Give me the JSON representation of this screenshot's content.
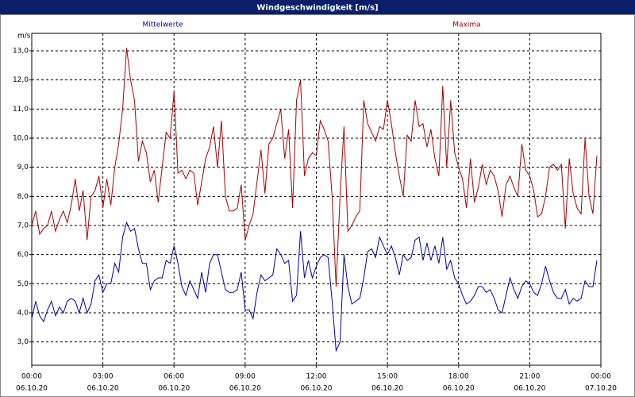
{
  "chart_data": {
    "type": "line",
    "title": "Windgeschwindigkeit [m/s]",
    "y_label": "m/s",
    "x": [
      0,
      10,
      20,
      30,
      40,
      50,
      60,
      70,
      80,
      90,
      100,
      110,
      120,
      130,
      140,
      150,
      160,
      170,
      180,
      190,
      200,
      210,
      220,
      230,
      240,
      250,
      260,
      270,
      280,
      290,
      300,
      310,
      320,
      330,
      340,
      350,
      360,
      370,
      380,
      390,
      400,
      410,
      420,
      430,
      440,
      450,
      460,
      470,
      480,
      490,
      500,
      510,
      520,
      530,
      540,
      550,
      560,
      570,
      580,
      590,
      600,
      610,
      620,
      630,
      640,
      650,
      660,
      670,
      680,
      690,
      700,
      710,
      720,
      730,
      740,
      750,
      760,
      770,
      780,
      790,
      800,
      810,
      820,
      830,
      840,
      850,
      860,
      870,
      880,
      890,
      900,
      910,
      920,
      930,
      940,
      950,
      960,
      970,
      980,
      990,
      1000,
      1010,
      1020,
      1030,
      1040,
      1050,
      1060,
      1070,
      1080,
      1090,
      1100,
      1110,
      1120,
      1130,
      1140,
      1150,
      1160,
      1170,
      1180,
      1190,
      1200,
      1210,
      1220,
      1230,
      1240,
      1250,
      1260,
      1270,
      1280,
      1290,
      1300,
      1310,
      1320,
      1330,
      1340,
      1350,
      1360,
      1370,
      1380,
      1390,
      1400,
      1410,
      1420,
      1430
    ],
    "series": [
      {
        "name": "Mittelwerte",
        "color": "#0000a8",
        "values": [
          3.8,
          4.4,
          3.9,
          3.7,
          4.1,
          4.4,
          3.9,
          4.2,
          4.0,
          4.4,
          4.5,
          4.4,
          4.0,
          4.5,
          4.0,
          4.3,
          5.1,
          5.3,
          4.7,
          5.0,
          5.0,
          5.7,
          5.4,
          6.6,
          7.1,
          6.8,
          6.9,
          6.2,
          5.7,
          5.7,
          4.8,
          5.1,
          5.2,
          5.2,
          5.8,
          5.7,
          6.3,
          5.7,
          4.9,
          4.6,
          5.1,
          4.8,
          4.5,
          5.4,
          4.7,
          5.7,
          6.0,
          6.0,
          5.4,
          4.8,
          4.7,
          4.7,
          4.8,
          5.4,
          4.1,
          4.1,
          3.8,
          4.7,
          5.3,
          5.1,
          5.2,
          5.3,
          6.2,
          6.0,
          5.7,
          5.8,
          4.4,
          4.6,
          6.8,
          5.2,
          5.8,
          5.2,
          5.6,
          5.9,
          6.0,
          5.9,
          4.4,
          2.7,
          3.0,
          6.0,
          4.9,
          4.3,
          4.4,
          4.5,
          5.2,
          6.1,
          6.2,
          5.9,
          6.6,
          6.3,
          6.0,
          6.3,
          5.9,
          5.3,
          6.0,
          5.8,
          5.9,
          6.5,
          6.6,
          5.8,
          6.4,
          5.8,
          6.3,
          5.7,
          6.6,
          5.5,
          5.8,
          5.2,
          5.0,
          4.6,
          4.3,
          4.4,
          4.6,
          4.9,
          4.9,
          4.7,
          4.8,
          4.5,
          4.1,
          4.0,
          4.6,
          5.2,
          4.8,
          4.5,
          4.9,
          5.1,
          5.0,
          4.7,
          4.6,
          5.0,
          5.6,
          5.1,
          4.7,
          4.5,
          4.5,
          4.8,
          4.3,
          4.5,
          4.4,
          4.5,
          5.1,
          4.9,
          4.9,
          5.8
        ]
      },
      {
        "name": "Maxima",
        "color": "#a80000",
        "values": [
          7.0,
          7.5,
          6.7,
          6.9,
          7.0,
          7.5,
          6.8,
          7.2,
          7.5,
          7.1,
          7.7,
          8.6,
          7.5,
          8.2,
          6.5,
          8.0,
          8.2,
          8.7,
          7.6,
          8.6,
          7.7,
          9.0,
          9.8,
          11.0,
          13.1,
          12.0,
          11.3,
          9.2,
          9.9,
          9.5,
          8.5,
          8.9,
          7.8,
          9.0,
          10.2,
          10.0,
          11.6,
          8.8,
          8.9,
          8.6,
          8.9,
          8.8,
          7.7,
          8.5,
          9.3,
          9.7,
          10.4,
          9.0,
          10.6,
          8.0,
          7.5,
          7.5,
          7.6,
          8.4,
          6.5,
          7.0,
          7.4,
          8.5,
          9.6,
          8.1,
          9.8,
          10.0,
          10.5,
          11.0,
          9.3,
          10.3,
          7.6,
          11.3,
          12.0,
          8.7,
          9.3,
          9.5,
          9.4,
          10.6,
          10.3,
          9.9,
          8.0,
          4.9,
          8.0,
          10.4,
          6.8,
          7.0,
          7.3,
          7.5,
          11.3,
          10.5,
          10.2,
          9.9,
          10.4,
          10.3,
          11.3,
          10.5,
          9.5,
          8.7,
          8.0,
          10.1,
          9.9,
          11.3,
          10.4,
          10.5,
          9.7,
          10.3,
          9.3,
          8.7,
          11.8,
          9.0,
          11.3,
          9.5,
          9.0,
          8.6,
          7.6,
          9.3,
          7.8,
          8.3,
          9.1,
          8.4,
          8.9,
          8.7,
          8.2,
          7.3,
          8.4,
          8.7,
          8.3,
          8.0,
          9.8,
          8.9,
          8.7,
          8.2,
          7.3,
          7.4,
          8.0,
          9.0,
          9.1,
          8.9,
          9.1,
          6.9,
          9.3,
          8.1,
          7.6,
          7.4,
          10.0,
          8.0,
          7.4,
          9.4
        ]
      }
    ],
    "xlim": [
      0,
      1440
    ],
    "xticks": [
      {
        "value": 0,
        "label": "00:00",
        "date": "06.10.20"
      },
      {
        "value": 180,
        "label": "03:00",
        "date": "06.10.20"
      },
      {
        "value": 360,
        "label": "06:00",
        "date": "06.10.20"
      },
      {
        "value": 540,
        "label": "09:00",
        "date": "06.10.20"
      },
      {
        "value": 720,
        "label": "12:00",
        "date": "06.10.20"
      },
      {
        "value": 900,
        "label": "15:00",
        "date": "06.10.20"
      },
      {
        "value": 1080,
        "label": "18:00",
        "date": "06.10.20"
      },
      {
        "value": 1260,
        "label": "21:00",
        "date": "06.10.20"
      },
      {
        "value": 1440,
        "label": "00:00",
        "date": "07.10.20"
      }
    ],
    "ylim": [
      2.2,
      13.6
    ],
    "yticks": [
      {
        "value": 3,
        "label": "3,0"
      },
      {
        "value": 4,
        "label": "4,0"
      },
      {
        "value": 5,
        "label": "5,0"
      },
      {
        "value": 6,
        "label": "6,0"
      },
      {
        "value": 7,
        "label": "7,0"
      },
      {
        "value": 8,
        "label": "8,0"
      },
      {
        "value": 9,
        "label": "9,0"
      },
      {
        "value": 10,
        "label": "10,0"
      },
      {
        "value": 11,
        "label": "11,0"
      },
      {
        "value": 12,
        "label": "12,0"
      },
      {
        "value": 13,
        "label": "13,0"
      }
    ],
    "grid": true
  }
}
